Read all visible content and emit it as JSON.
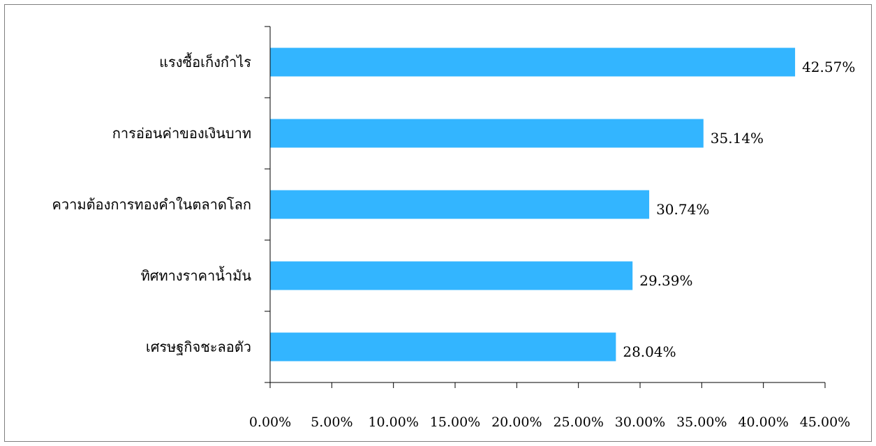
{
  "chart_data": {
    "type": "bar",
    "orientation": "horizontal",
    "title": "",
    "xlabel": "",
    "ylabel": "",
    "categories": [
      "แรงซื้อเก็งกำไร",
      "การอ่อนค่าของเงินบาท",
      "ความต้องการทองคำในตลาดโลก",
      "ทิศทางราคาน้ำมัน",
      "เศรษฐกิจชะลอตัว"
    ],
    "values": [
      42.57,
      35.14,
      30.74,
      29.39,
      28.04
    ],
    "value_labels": [
      "42.57%",
      "35.14%",
      "30.74%",
      "29.39%",
      "28.04%"
    ],
    "xlim": [
      0,
      45
    ],
    "x_ticks": [
      0,
      5,
      10,
      15,
      20,
      25,
      30,
      35,
      40,
      45
    ],
    "x_tick_labels": [
      "0.00%",
      "5.00%",
      "10.00%",
      "15.00%",
      "20.00%",
      "25.00%",
      "30.00%",
      "35.00%",
      "40.00%",
      "45.00%"
    ],
    "grid": false,
    "legend": "none",
    "bar_color": "#33b5ff"
  }
}
